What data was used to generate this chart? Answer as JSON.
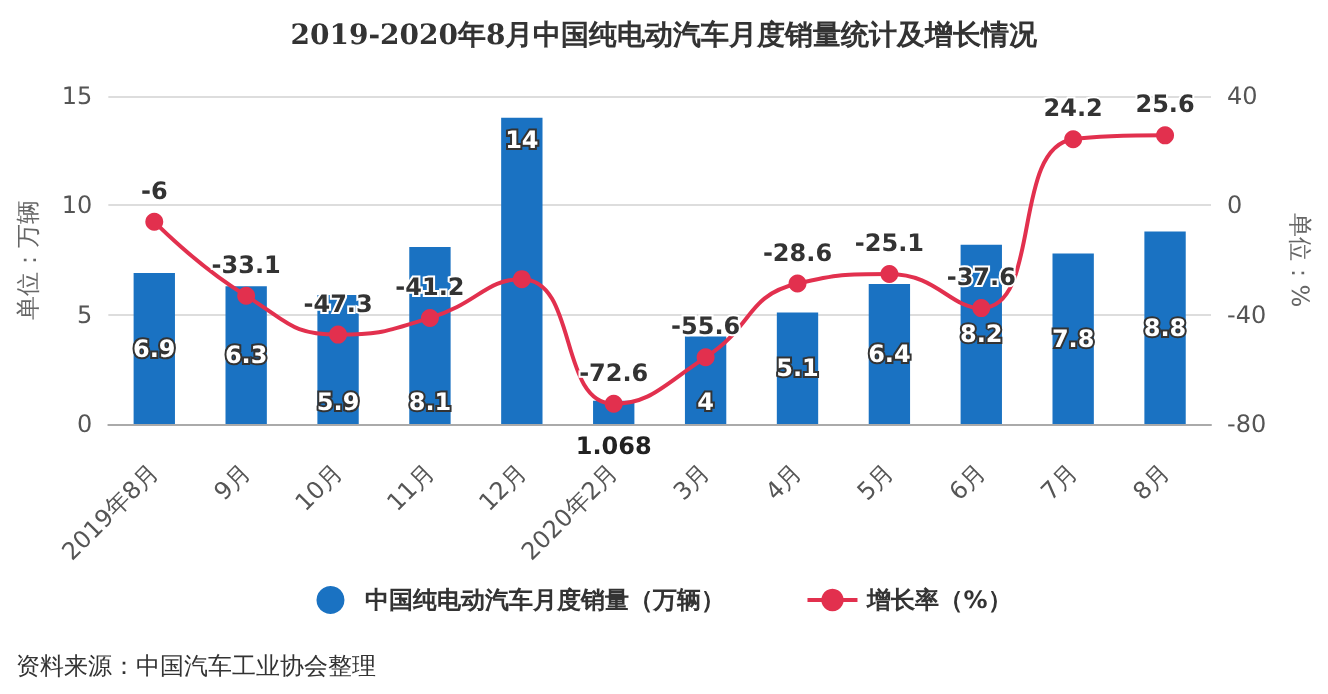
{
  "chart_data": {
    "type": "bar",
    "title": "2019-2020年8月中国纯电动汽车月度销量统计及增长情况",
    "categories": [
      "2019年8月",
      "9月",
      "10月",
      "11月",
      "12月",
      "2020年2月",
      "3月",
      "4月",
      "5月",
      "6月",
      "7月",
      "8月"
    ],
    "series": [
      {
        "name": "中国纯电动汽车月度销量（万辆）",
        "type": "bar",
        "color": "#1a72c2",
        "values": [
          6.9,
          6.3,
          5.9,
          8.1,
          14,
          1.068,
          4,
          5.1,
          6.4,
          8.2,
          7.8,
          8.8
        ],
        "value_labels": [
          "6.9",
          "6.3",
          "5.9",
          "8.1",
          "14",
          "1.068",
          "4",
          "5.1",
          "6.4",
          "8.2",
          "7.8",
          "8.8"
        ]
      },
      {
        "name": "增长率（%）",
        "type": "line",
        "axis": "y2",
        "color": "#e2304e",
        "values": [
          -6,
          -33.1,
          -47.3,
          -41.2,
          -27,
          -72.6,
          -55.6,
          -28.6,
          -25.1,
          -37.6,
          24.2,
          25.6
        ],
        "value_labels": [
          "-6",
          "-33.1",
          "-47.3",
          "-41.2",
          null,
          "-72.6",
          "-55.6",
          "-28.6",
          "-25.1",
          "-37.6",
          "24.2",
          "25.6"
        ]
      }
    ],
    "ylabel": "单位：万辆",
    "y2label": "单位：%",
    "ylim": [
      0,
      15
    ],
    "yticks": [
      0,
      5,
      10,
      15
    ],
    "y2lim": [
      -80,
      40
    ],
    "y2ticks": [
      -80,
      -40,
      0,
      40
    ],
    "grid": "y",
    "legend": "bottom",
    "marker": "circle",
    "line_style": "solid",
    "annotations": [
      "资料来源：中国汽车工业协会整理"
    ]
  }
}
